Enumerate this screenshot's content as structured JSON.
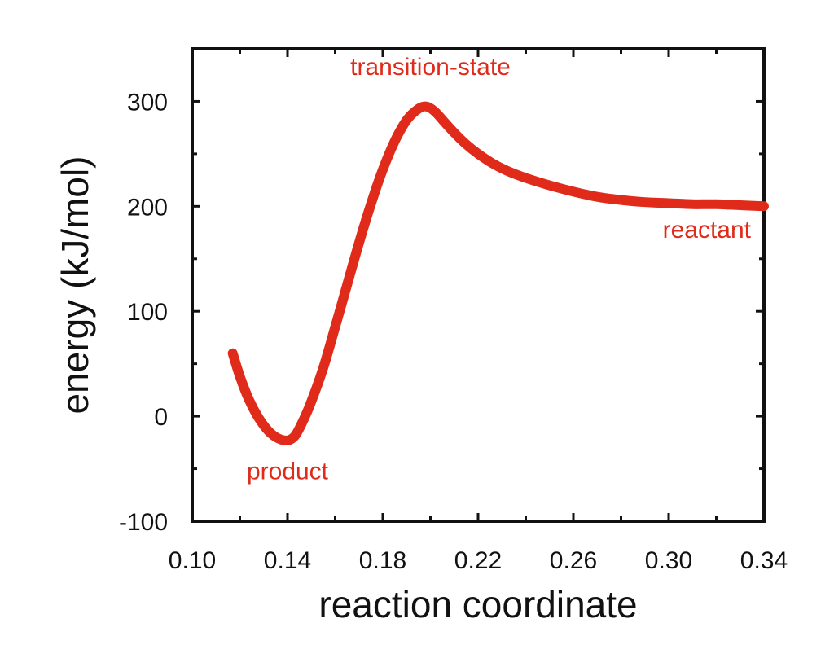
{
  "chart_data": {
    "type": "line",
    "title": "",
    "xlabel": "reaction coordinate",
    "ylabel": "energy (kJ/mol)",
    "xlim": [
      0.1,
      0.34
    ],
    "ylim": [
      -100,
      350
    ],
    "x_ticks": [
      0.1,
      0.14,
      0.18,
      0.22,
      0.26,
      0.3,
      0.34
    ],
    "x_tick_labels": [
      "0.10",
      "0.14",
      "0.18",
      "0.22",
      "0.26",
      "0.30",
      "0.34"
    ],
    "y_ticks": [
      -100,
      0,
      100,
      200,
      300
    ],
    "y_tick_labels": [
      "-100",
      "0",
      "100",
      "200",
      "300"
    ],
    "grid": false,
    "series": [
      {
        "color": "#e02a1a",
        "points": [
          [
            0.117,
            60
          ],
          [
            0.12,
            38
          ],
          [
            0.124,
            15
          ],
          [
            0.128,
            -2
          ],
          [
            0.132,
            -14
          ],
          [
            0.136,
            -21
          ],
          [
            0.14,
            -23
          ],
          [
            0.143,
            -19
          ],
          [
            0.146,
            -7
          ],
          [
            0.15,
            14
          ],
          [
            0.155,
            46
          ],
          [
            0.16,
            85
          ],
          [
            0.165,
            125
          ],
          [
            0.17,
            165
          ],
          [
            0.175,
            202
          ],
          [
            0.18,
            235
          ],
          [
            0.185,
            262
          ],
          [
            0.19,
            282
          ],
          [
            0.195,
            293
          ],
          [
            0.1985,
            295
          ],
          [
            0.202,
            290
          ],
          [
            0.206,
            280
          ],
          [
            0.21,
            270
          ],
          [
            0.215,
            259
          ],
          [
            0.22,
            250
          ],
          [
            0.226,
            241
          ],
          [
            0.232,
            234
          ],
          [
            0.24,
            227
          ],
          [
            0.25,
            220
          ],
          [
            0.26,
            214
          ],
          [
            0.27,
            209
          ],
          [
            0.28,
            206
          ],
          [
            0.29,
            204
          ],
          [
            0.3,
            203
          ],
          [
            0.31,
            202
          ],
          [
            0.32,
            202
          ],
          [
            0.33,
            201
          ],
          [
            0.34,
            200
          ]
        ]
      }
    ],
    "annotations": [
      {
        "text": "transition-state",
        "x": 0.2,
        "y": 325,
        "color": "#e02a1a"
      },
      {
        "text": "reactant",
        "x": 0.316,
        "y": 170,
        "color": "#e02a1a"
      },
      {
        "text": "product",
        "x": 0.14,
        "y": -60,
        "color": "#e02a1a"
      }
    ]
  }
}
